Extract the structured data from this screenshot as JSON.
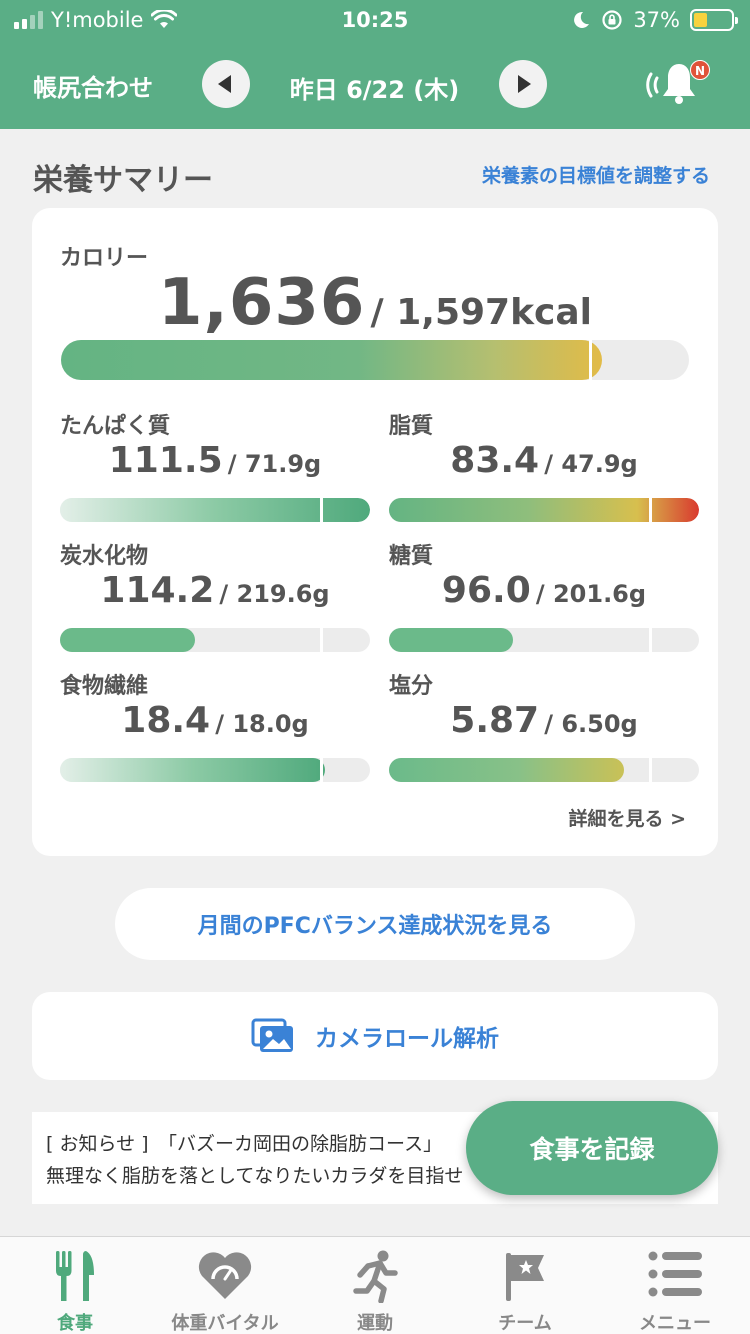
{
  "status_bar": {
    "carrier": "Y!mobile",
    "time": "10:25",
    "battery": "37%",
    "battery_level": 0.37,
    "icons": [
      "signal-icon",
      "wifi-icon",
      "moon-icon",
      "rotation-lock-icon",
      "battery-icon"
    ]
  },
  "header": {
    "title": "帳尻合わせ",
    "date": "昨日 6/22 (木)",
    "prev_icon": "chevron-left-icon",
    "next_icon": "chevron-right-icon",
    "notification_icon": "bell-icon",
    "notification_badge": "N"
  },
  "summary": {
    "title": "栄養サマリー",
    "adjust_link": "栄養素の目標値を調整する",
    "calorie": {
      "label": "カロリー",
      "value": "1,636",
      "target": "/ 1,597kcal",
      "ratio": 1.024
    },
    "nutrients": [
      {
        "label": "たんぱく質",
        "value": "111.5",
        "target": "/ 71.9g",
        "ratio": 1.55,
        "style": "green-grad"
      },
      {
        "label": "脂質",
        "value": "83.4",
        "target": "/ 47.9g",
        "ratio": 1.74,
        "style": "red-grad"
      },
      {
        "label": "炭水化物",
        "value": "114.2",
        "target": "/ 219.6g",
        "ratio": 0.52,
        "style": "green"
      },
      {
        "label": "糖質",
        "value": "96.0",
        "target": "/ 201.6g",
        "ratio": 0.476,
        "style": "green"
      },
      {
        "label": "食物繊維",
        "value": "18.4",
        "target": "/ 18.0g",
        "ratio": 1.02,
        "style": "green-grad"
      },
      {
        "label": "塩分",
        "value": "5.87",
        "target": "/ 6.50g",
        "ratio": 0.903,
        "style": "yellow-grad"
      }
    ],
    "details_link": "詳細を見る >"
  },
  "pfc_button": "月間のPFCバランス達成状況を見る",
  "camera_roll": {
    "label": "カメラロール解析",
    "icon": "photo-gallery-icon"
  },
  "notice": {
    "line1": "[ お知らせ ]　「バズーカ岡田の除脂肪コース」",
    "line2": "無理なく脂肪を落としてなりたいカラダを目指せ"
  },
  "fab": "食事を記録",
  "tabs": [
    {
      "label": "食事",
      "icon": "fork-knife-icon",
      "active": true
    },
    {
      "label": "体重バイタル",
      "icon": "heart-scale-icon",
      "active": false
    },
    {
      "label": "運動",
      "icon": "runner-icon",
      "active": false
    },
    {
      "label": "チーム",
      "icon": "flag-icon",
      "active": false
    },
    {
      "label": "メニュー",
      "icon": "menu-list-icon",
      "active": false
    }
  ],
  "colors": {
    "brand_green": "#5aae86",
    "link_blue": "#3a82d6",
    "over_yellow": "#e2bb47",
    "over_red": "#d93a2f"
  }
}
